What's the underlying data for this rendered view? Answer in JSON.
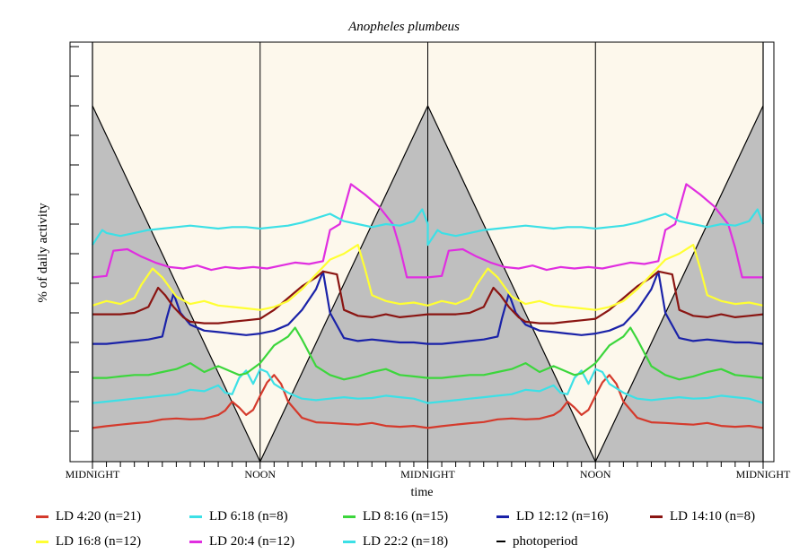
{
  "chart_data": {
    "type": "line",
    "title": "Anopheles plumbeus",
    "xlabel": "time",
    "ylabel": "% of daily activity",
    "x_range_hours": [
      0,
      48
    ],
    "x_tick_labels": [
      "MIDNIGHT",
      "NOON",
      "MIDNIGHT",
      "NOON",
      "MIDNIGHT"
    ],
    "x_tick_hours": [
      0,
      12,
      24,
      36,
      48
    ],
    "grid": false,
    "legend_position": "bottom",
    "colors": {
      "photoperiod_dark": "#bfbfbf",
      "photoperiod_light": "#fdf8ec",
      "photoperiod_line": "#000000"
    },
    "series": [
      {
        "name": "LD 4:20 (n=21)",
        "color": "#d43a2c",
        "points": [
          [
            0.0,
            0.11
          ],
          [
            1.0,
            0.17
          ],
          [
            2.0,
            0.22
          ],
          [
            3.0,
            0.27
          ],
          [
            4.0,
            0.31
          ],
          [
            5.0,
            0.4
          ],
          [
            6.0,
            0.43
          ],
          [
            7.0,
            0.4
          ],
          [
            8.0,
            0.42
          ],
          [
            9.0,
            0.55
          ],
          [
            9.5,
            0.7
          ],
          [
            10.0,
            1.0
          ],
          [
            10.5,
            0.8
          ],
          [
            11.0,
            0.55
          ],
          [
            11.5,
            0.72
          ],
          [
            12.0,
            1.2
          ],
          [
            12.5,
            1.65
          ],
          [
            13.0,
            1.9
          ],
          [
            13.5,
            1.6
          ],
          [
            14.0,
            1.0
          ],
          [
            15.0,
            0.45
          ],
          [
            16.0,
            0.3
          ],
          [
            17.0,
            0.28
          ],
          [
            18.0,
            0.25
          ],
          [
            19.0,
            0.22
          ],
          [
            20.0,
            0.28
          ],
          [
            21.0,
            0.18
          ],
          [
            22.0,
            0.15
          ],
          [
            23.0,
            0.18
          ],
          [
            24.0,
            0.11
          ]
        ]
      },
      {
        "name": "LD 6:18 (n=8)",
        "color": "#3ce0e6",
        "points": [
          [
            0.0,
            0.95
          ],
          [
            1.0,
            1.0
          ],
          [
            2.0,
            1.05
          ],
          [
            3.0,
            1.1
          ],
          [
            4.0,
            1.15
          ],
          [
            5.0,
            1.2
          ],
          [
            6.0,
            1.25
          ],
          [
            7.0,
            1.4
          ],
          [
            8.0,
            1.35
          ],
          [
            9.0,
            1.55
          ],
          [
            9.5,
            1.3
          ],
          [
            10.0,
            1.25
          ],
          [
            10.5,
            1.8
          ],
          [
            11.0,
            2.05
          ],
          [
            11.5,
            1.6
          ],
          [
            12.0,
            2.1
          ],
          [
            12.5,
            2.0
          ],
          [
            13.0,
            1.6
          ],
          [
            14.0,
            1.3
          ],
          [
            15.0,
            1.1
          ],
          [
            16.0,
            1.05
          ],
          [
            17.0,
            1.1
          ],
          [
            18.0,
            1.15
          ],
          [
            19.0,
            1.1
          ],
          [
            20.0,
            1.12
          ],
          [
            21.0,
            1.2
          ],
          [
            22.0,
            1.15
          ],
          [
            23.0,
            1.1
          ],
          [
            24.0,
            0.95
          ]
        ]
      },
      {
        "name": "LD 8:16 (n=15)",
        "color": "#3cd63c",
        "points": [
          [
            0.0,
            1.8
          ],
          [
            1.0,
            1.8
          ],
          [
            2.0,
            1.85
          ],
          [
            3.0,
            1.9
          ],
          [
            4.0,
            1.9
          ],
          [
            5.0,
            2.0
          ],
          [
            6.0,
            2.1
          ],
          [
            7.0,
            2.3
          ],
          [
            8.0,
            2.0
          ],
          [
            9.0,
            2.2
          ],
          [
            10.0,
            2.0
          ],
          [
            10.5,
            1.9
          ],
          [
            11.0,
            1.95
          ],
          [
            12.0,
            2.3
          ],
          [
            13.0,
            2.9
          ],
          [
            14.0,
            3.2
          ],
          [
            14.5,
            3.5
          ],
          [
            15.0,
            3.1
          ],
          [
            16.0,
            2.2
          ],
          [
            17.0,
            1.9
          ],
          [
            18.0,
            1.75
          ],
          [
            19.0,
            1.85
          ],
          [
            20.0,
            2.0
          ],
          [
            21.0,
            2.1
          ],
          [
            22.0,
            1.9
          ],
          [
            23.0,
            1.85
          ],
          [
            24.0,
            1.8
          ]
        ]
      },
      {
        "name": "LD 12:12 (n=16)",
        "color": "#1a22a8",
        "points": [
          [
            0.0,
            2.95
          ],
          [
            1.0,
            2.95
          ],
          [
            2.0,
            3.0
          ],
          [
            3.0,
            3.05
          ],
          [
            4.0,
            3.1
          ],
          [
            5.0,
            3.2
          ],
          [
            5.3,
            3.8
          ],
          [
            5.8,
            4.65
          ],
          [
            6.3,
            4.0
          ],
          [
            7.0,
            3.6
          ],
          [
            8.0,
            3.4
          ],
          [
            9.0,
            3.35
          ],
          [
            10.0,
            3.3
          ],
          [
            11.0,
            3.25
          ],
          [
            12.0,
            3.3
          ],
          [
            13.0,
            3.4
          ],
          [
            14.0,
            3.6
          ],
          [
            15.0,
            4.1
          ],
          [
            16.0,
            4.8
          ],
          [
            16.5,
            5.4
          ],
          [
            17.0,
            4.0
          ],
          [
            18.0,
            3.15
          ],
          [
            19.0,
            3.05
          ],
          [
            20.0,
            3.1
          ],
          [
            21.0,
            3.05
          ],
          [
            22.0,
            3.0
          ],
          [
            23.0,
            3.0
          ],
          [
            24.0,
            2.95
          ]
        ]
      },
      {
        "name": "LD 14:10 (n=8)",
        "color": "#8a1512",
        "points": [
          [
            0.0,
            3.95
          ],
          [
            1.0,
            3.95
          ],
          [
            2.0,
            3.95
          ],
          [
            3.0,
            4.0
          ],
          [
            4.0,
            4.2
          ],
          [
            4.7,
            4.85
          ],
          [
            5.2,
            4.6
          ],
          [
            5.8,
            4.2
          ],
          [
            6.5,
            3.85
          ],
          [
            7.0,
            3.7
          ],
          [
            8.0,
            3.65
          ],
          [
            9.0,
            3.65
          ],
          [
            10.0,
            3.7
          ],
          [
            11.0,
            3.75
          ],
          [
            12.0,
            3.8
          ],
          [
            13.0,
            4.1
          ],
          [
            14.0,
            4.5
          ],
          [
            15.0,
            4.9
          ],
          [
            16.0,
            5.2
          ],
          [
            16.5,
            5.4
          ],
          [
            17.5,
            5.3
          ],
          [
            18.0,
            4.1
          ],
          [
            19.0,
            3.9
          ],
          [
            20.0,
            3.85
          ],
          [
            21.0,
            3.95
          ],
          [
            22.0,
            3.85
          ],
          [
            23.0,
            3.9
          ],
          [
            24.0,
            3.95
          ]
        ]
      },
      {
        "name": "LD 16:8 (n=12)",
        "color": "#ffff33",
        "points": [
          [
            0.0,
            4.25
          ],
          [
            1.0,
            4.4
          ],
          [
            2.0,
            4.3
          ],
          [
            3.0,
            4.5
          ],
          [
            3.5,
            4.95
          ],
          [
            4.3,
            5.5
          ],
          [
            5.0,
            5.2
          ],
          [
            6.0,
            4.55
          ],
          [
            7.0,
            4.3
          ],
          [
            8.0,
            4.4
          ],
          [
            9.0,
            4.25
          ],
          [
            10.0,
            4.2
          ],
          [
            11.0,
            4.15
          ],
          [
            12.0,
            4.1
          ],
          [
            13.0,
            4.2
          ],
          [
            14.0,
            4.4
          ],
          [
            15.0,
            4.8
          ],
          [
            16.0,
            5.3
          ],
          [
            17.0,
            5.8
          ],
          [
            18.0,
            6.0
          ],
          [
            19.0,
            6.3
          ],
          [
            19.5,
            5.5
          ],
          [
            20.0,
            4.6
          ],
          [
            21.0,
            4.4
          ],
          [
            22.0,
            4.3
          ],
          [
            23.0,
            4.35
          ],
          [
            24.0,
            4.25
          ]
        ]
      },
      {
        "name": "LD 20:4 (n=12)",
        "color": "#e02ee0",
        "points": [
          [
            0.0,
            5.2
          ],
          [
            1.0,
            5.25
          ],
          [
            1.5,
            6.1
          ],
          [
            2.5,
            6.15
          ],
          [
            3.5,
            5.9
          ],
          [
            4.5,
            5.7
          ],
          [
            5.5,
            5.55
          ],
          [
            6.5,
            5.5
          ],
          [
            7.5,
            5.6
          ],
          [
            8.5,
            5.45
          ],
          [
            9.5,
            5.55
          ],
          [
            10.5,
            5.5
          ],
          [
            11.5,
            5.55
          ],
          [
            12.5,
            5.5
          ],
          [
            13.5,
            5.6
          ],
          [
            14.5,
            5.7
          ],
          [
            15.5,
            5.65
          ],
          [
            16.5,
            5.75
          ],
          [
            17.0,
            6.8
          ],
          [
            17.7,
            7.0
          ],
          [
            18.5,
            8.35
          ],
          [
            19.5,
            8.0
          ],
          [
            20.5,
            7.6
          ],
          [
            21.5,
            7.0
          ],
          [
            22.0,
            6.2
          ],
          [
            22.5,
            5.2
          ],
          [
            23.0,
            5.2
          ],
          [
            24.0,
            5.2
          ]
        ]
      },
      {
        "name": "LD 22:2 (n=18)",
        "color": "#3ce0e6",
        "points": [
          [
            0.0,
            6.3
          ],
          [
            0.7,
            6.8
          ],
          [
            1.0,
            6.7
          ],
          [
            2.0,
            6.6
          ],
          [
            3.0,
            6.7
          ],
          [
            4.0,
            6.8
          ],
          [
            5.0,
            6.85
          ],
          [
            6.0,
            6.9
          ],
          [
            7.0,
            6.95
          ],
          [
            8.0,
            6.9
          ],
          [
            9.0,
            6.85
          ],
          [
            10.0,
            6.9
          ],
          [
            11.0,
            6.9
          ],
          [
            12.0,
            6.85
          ],
          [
            13.0,
            6.9
          ],
          [
            14.0,
            6.95
          ],
          [
            15.0,
            7.05
          ],
          [
            16.0,
            7.2
          ],
          [
            17.0,
            7.35
          ],
          [
            18.0,
            7.1
          ],
          [
            19.0,
            7.0
          ],
          [
            20.0,
            6.9
          ],
          [
            21.0,
            7.0
          ],
          [
            22.0,
            6.95
          ],
          [
            23.0,
            7.1
          ],
          [
            23.6,
            7.5
          ],
          [
            24.0,
            7.0
          ]
        ]
      }
    ],
    "photoperiod": {
      "name": "photoperiod",
      "color": "#000000"
    }
  }
}
